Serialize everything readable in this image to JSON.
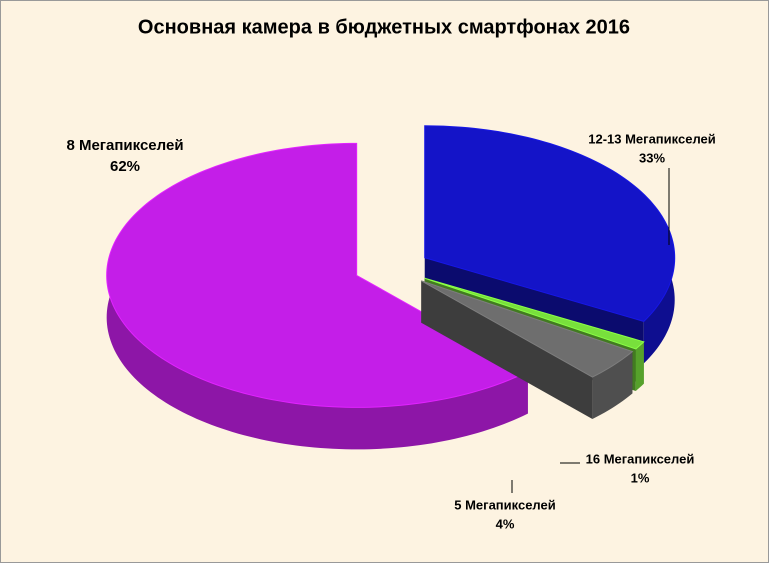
{
  "chart_data": {
    "type": "pie",
    "title": "Основная камера в бюджетных смартфонах 2016",
    "categories": [
      "12-13 Мегапикселей",
      "16 Мегапикселей",
      "5 Мегапикселей",
      "8 Мегапикселей"
    ],
    "values": [
      33,
      1,
      4,
      62
    ],
    "value_labels": [
      "33%",
      "1%",
      "4%",
      "62%"
    ],
    "colors": [
      "#1414c8",
      "#78e03c",
      "#6e6e6e",
      "#c41ee8"
    ]
  }
}
